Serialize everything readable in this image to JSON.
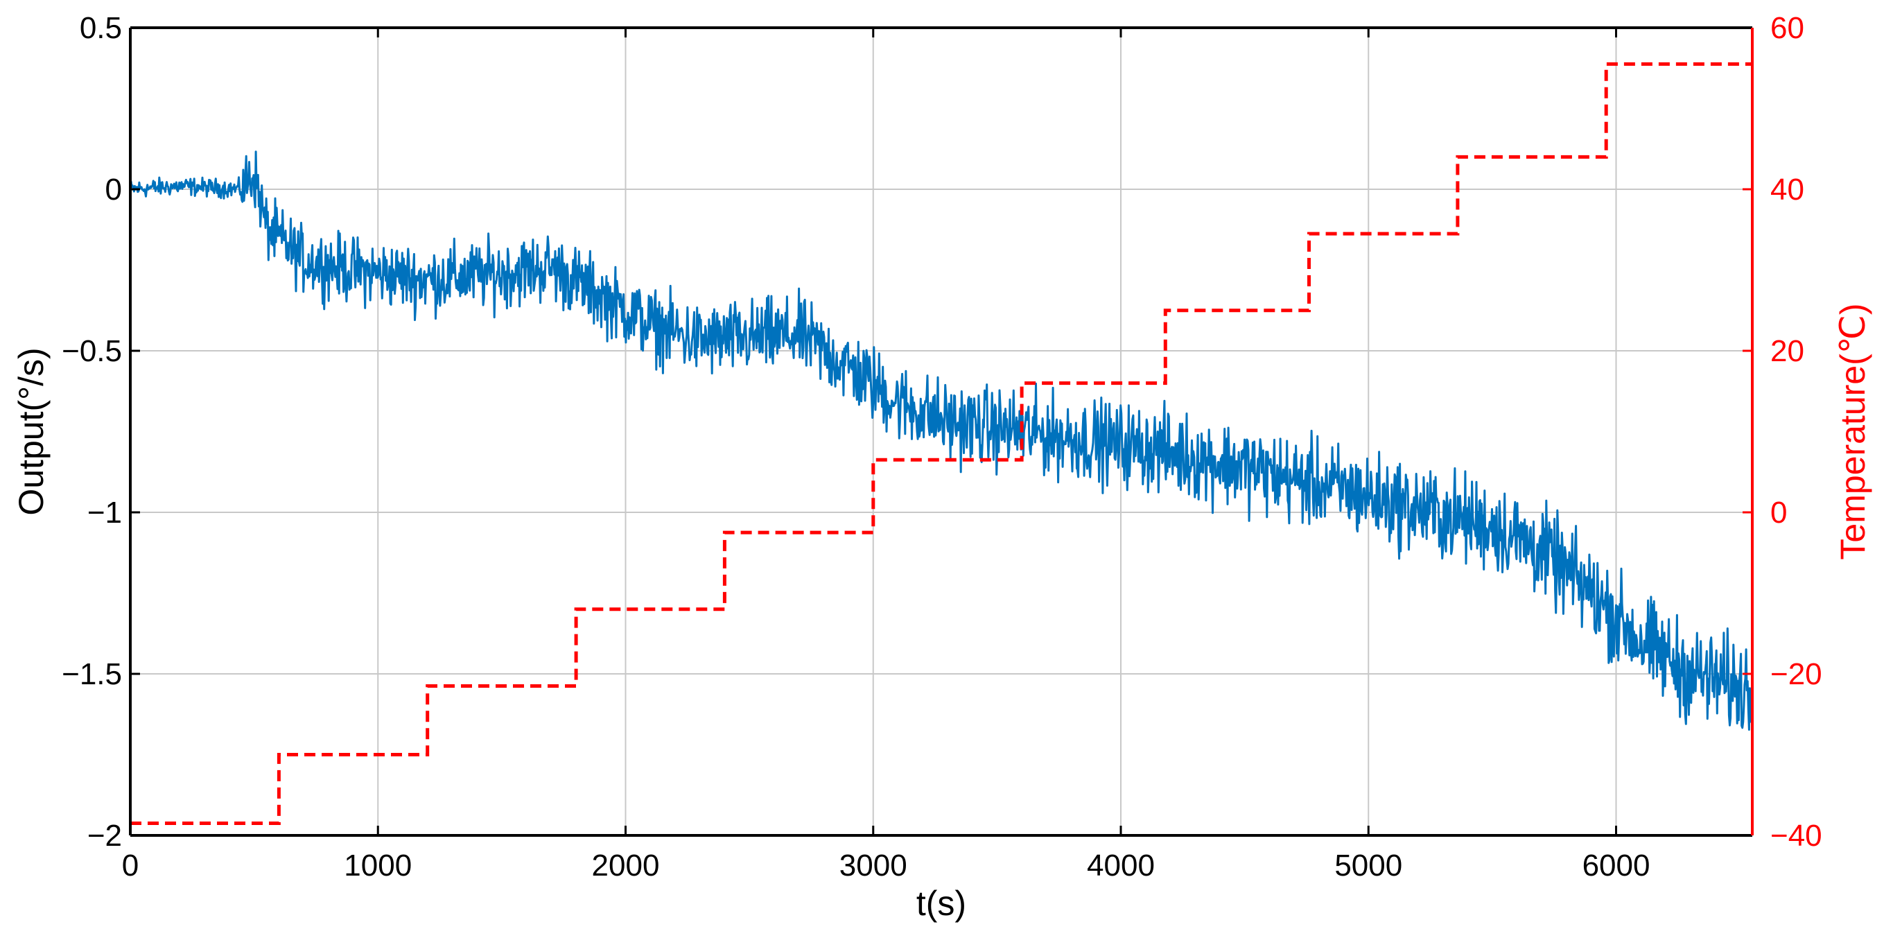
{
  "colors": {
    "output": "#0072BD",
    "temperature": "#FF0000",
    "axis_left": "#000000",
    "grid": "#c8c8c8"
  },
  "chart_data": {
    "type": "line",
    "xlabel": "t(s)",
    "ylabel_left": "Output(°/s)",
    "ylabel_right": "Temperature(℃)",
    "xlim": [
      0,
      6550
    ],
    "ylim_left": [
      -2,
      0.5
    ],
    "ylim_right": [
      -40,
      60
    ],
    "grid": true,
    "x_ticks": [
      "0",
      "1000",
      "2000",
      "3000",
      "4000",
      "5000",
      "6000"
    ],
    "y_left_ticks": [
      "0.5",
      "0",
      "−0.5",
      "−1",
      "−1.5",
      "−2"
    ],
    "y_right_ticks": [
      "60",
      "40",
      "20",
      "0",
      "−20",
      "−40"
    ],
    "series": [
      {
        "axis": "left",
        "style": "solid",
        "x": [
          0,
          200,
          450,
          500,
          550,
          700,
          900,
          1200,
          1500,
          1700,
          1900,
          2100,
          2300,
          2500,
          2700,
          2900,
          3100,
          3300,
          3500,
          3700,
          3900,
          4100,
          4300,
          4500,
          4700,
          4900,
          5100,
          5300,
          5500,
          5700,
          5900,
          6100,
          6300,
          6550
        ],
        "y": [
          0.0,
          0.01,
          0.0,
          0.05,
          -0.12,
          -0.22,
          -0.25,
          -0.28,
          -0.26,
          -0.24,
          -0.33,
          -0.42,
          -0.47,
          -0.46,
          -0.45,
          -0.55,
          -0.66,
          -0.72,
          -0.74,
          -0.76,
          -0.78,
          -0.8,
          -0.83,
          -0.86,
          -0.9,
          -0.93,
          -0.97,
          -1.01,
          -1.04,
          -1.12,
          -1.25,
          -1.4,
          -1.5,
          -1.55
        ],
        "noise_amplitude": 0.07
      },
      {
        "axis": "right",
        "style": "dashed",
        "x": [
          0,
          600,
          600,
          1200,
          1200,
          1800,
          1800,
          2400,
          2400,
          3000,
          3000,
          3600,
          3600,
          4180,
          4180,
          4760,
          4760,
          5360,
          5360,
          5960,
          5960,
          6550
        ],
        "y": [
          -38.5,
          -38.5,
          -30,
          -30,
          -21.5,
          -21.5,
          -12,
          -12,
          -2.5,
          -2.5,
          6.5,
          6.5,
          16,
          16,
          25,
          25,
          34.5,
          34.5,
          44,
          44,
          55.5,
          55.5
        ]
      }
    ]
  }
}
